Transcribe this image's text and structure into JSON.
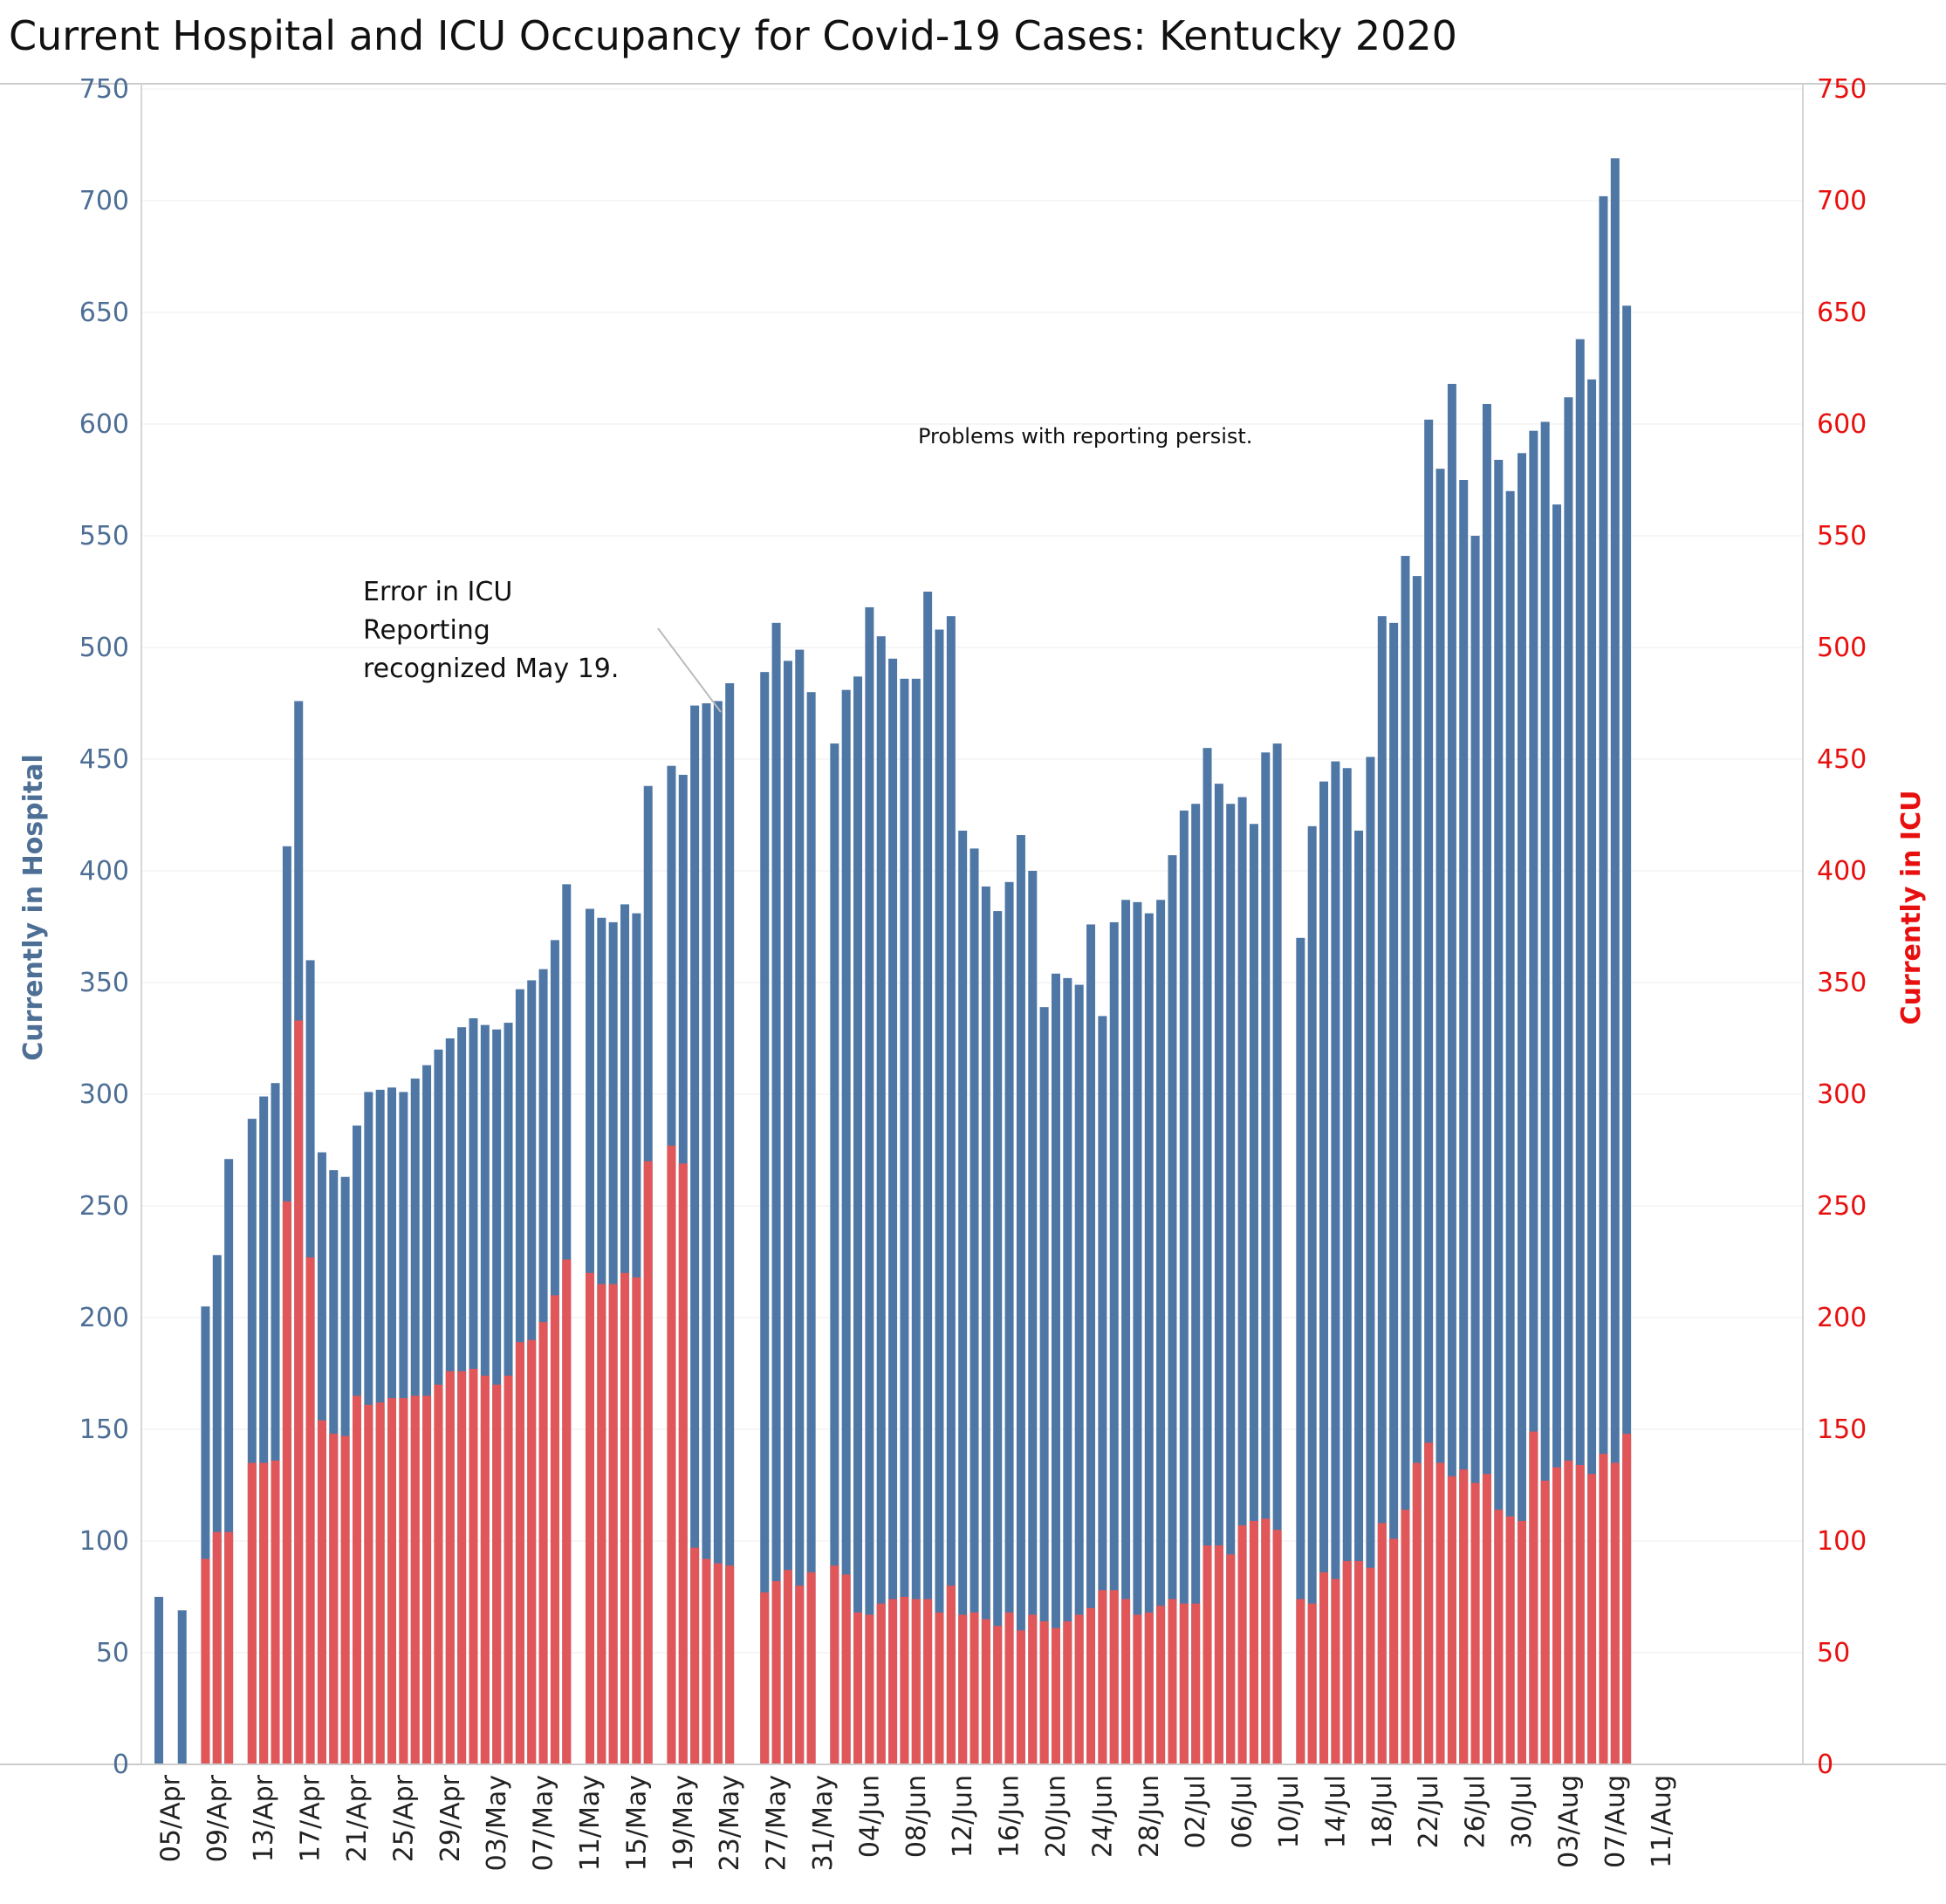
{
  "title": "Current Hospital and ICU Occupancy for Covid-19 Cases:  Kentucky 2020",
  "colors": {
    "hospital": "#4e77a5",
    "icu": "#e15759",
    "left_axis": "#4e6f95",
    "right_axis": "#e8100f",
    "grid": "#ececec"
  },
  "chart_data": {
    "type": "bar",
    "x_axis_label": "",
    "y_axis_left": {
      "title": "Currently in Hospital",
      "range": [
        0,
        750
      ],
      "ticks": [
        0,
        50,
        100,
        150,
        200,
        250,
        300,
        350,
        400,
        450,
        500,
        550,
        600,
        650,
        700,
        750
      ]
    },
    "y_axis_right": {
      "title": "Currently in ICU",
      "range": [
        0,
        750
      ],
      "ticks": [
        0,
        50,
        100,
        150,
        200,
        250,
        300,
        350,
        400,
        450,
        500,
        550,
        600,
        650,
        700,
        750
      ]
    },
    "x_date_range": [
      "2020-04-03",
      "2020-08-12"
    ],
    "x_ticks": [
      {
        "date": "2020-04-05",
        "label": "05/Apr"
      },
      {
        "date": "2020-04-09",
        "label": "09/Apr"
      },
      {
        "date": "2020-04-13",
        "label": "13/Apr"
      },
      {
        "date": "2020-04-17",
        "label": "17/Apr"
      },
      {
        "date": "2020-04-21",
        "label": "21/Apr"
      },
      {
        "date": "2020-04-25",
        "label": "25/Apr"
      },
      {
        "date": "2020-04-29",
        "label": "29/Apr"
      },
      {
        "date": "2020-05-03",
        "label": "03/May"
      },
      {
        "date": "2020-05-07",
        "label": "07/May"
      },
      {
        "date": "2020-05-11",
        "label": "11/May"
      },
      {
        "date": "2020-05-15",
        "label": "15/May"
      },
      {
        "date": "2020-05-19",
        "label": "19/May"
      },
      {
        "date": "2020-05-23",
        "label": "23/May"
      },
      {
        "date": "2020-05-27",
        "label": "27/May"
      },
      {
        "date": "2020-05-31",
        "label": "31/May"
      },
      {
        "date": "2020-06-04",
        "label": "04/Jun"
      },
      {
        "date": "2020-06-08",
        "label": "08/Jun"
      },
      {
        "date": "2020-06-12",
        "label": "12/Jun"
      },
      {
        "date": "2020-06-16",
        "label": "16/Jun"
      },
      {
        "date": "2020-06-20",
        "label": "20/Jun"
      },
      {
        "date": "2020-06-24",
        "label": "24/Jun"
      },
      {
        "date": "2020-06-28",
        "label": "28/Jun"
      },
      {
        "date": "2020-07-02",
        "label": "02/Jul"
      },
      {
        "date": "2020-07-06",
        "label": "06/Jul"
      },
      {
        "date": "2020-07-10",
        "label": "10/Jul"
      },
      {
        "date": "2020-07-14",
        "label": "14/Jul"
      },
      {
        "date": "2020-07-18",
        "label": "18/Jul"
      },
      {
        "date": "2020-07-22",
        "label": "22/Jul"
      },
      {
        "date": "2020-07-26",
        "label": "26/Jul"
      },
      {
        "date": "2020-07-30",
        "label": "30/Jul"
      },
      {
        "date": "2020-08-03",
        "label": "03/Aug"
      },
      {
        "date": "2020-08-07",
        "label": "07/Aug"
      },
      {
        "date": "2020-08-11",
        "label": "11/Aug"
      }
    ],
    "series": [
      {
        "name": "Currently in Hospital",
        "axis": "left",
        "data": [
          [
            "2020-04-04",
            75
          ],
          [
            "2020-04-06",
            69
          ],
          [
            "2020-04-08",
            205
          ],
          [
            "2020-04-09",
            228
          ],
          [
            "2020-04-10",
            271
          ],
          [
            "2020-04-12",
            289
          ],
          [
            "2020-04-13",
            299
          ],
          [
            "2020-04-14",
            305
          ],
          [
            "2020-04-15",
            411
          ],
          [
            "2020-04-16",
            476
          ],
          [
            "2020-04-17",
            360
          ],
          [
            "2020-04-18",
            274
          ],
          [
            "2020-04-19",
            266
          ],
          [
            "2020-04-20",
            263
          ],
          [
            "2020-04-21",
            286
          ],
          [
            "2020-04-22",
            301
          ],
          [
            "2020-04-23",
            302
          ],
          [
            "2020-04-24",
            303
          ],
          [
            "2020-04-25",
            301
          ],
          [
            "2020-04-26",
            307
          ],
          [
            "2020-04-27",
            313
          ],
          [
            "2020-04-28",
            320
          ],
          [
            "2020-04-29",
            325
          ],
          [
            "2020-04-30",
            330
          ],
          [
            "2020-05-01",
            334
          ],
          [
            "2020-05-02",
            331
          ],
          [
            "2020-05-03",
            329
          ],
          [
            "2020-05-04",
            332
          ],
          [
            "2020-05-05",
            347
          ],
          [
            "2020-05-06",
            351
          ],
          [
            "2020-05-07",
            356
          ],
          [
            "2020-05-08",
            369
          ],
          [
            "2020-05-09",
            394
          ],
          [
            "2020-05-11",
            383
          ],
          [
            "2020-05-12",
            379
          ],
          [
            "2020-05-13",
            377
          ],
          [
            "2020-05-14",
            385
          ],
          [
            "2020-05-15",
            381
          ],
          [
            "2020-05-16",
            438
          ],
          [
            "2020-05-18",
            447
          ],
          [
            "2020-05-19",
            443
          ],
          [
            "2020-05-20",
            474
          ],
          [
            "2020-05-21",
            475
          ],
          [
            "2020-05-22",
            476
          ],
          [
            "2020-05-23",
            484
          ],
          [
            "2020-05-26",
            489
          ],
          [
            "2020-05-27",
            511
          ],
          [
            "2020-05-28",
            494
          ],
          [
            "2020-05-29",
            499
          ],
          [
            "2020-05-30",
            480
          ],
          [
            "2020-06-01",
            457
          ],
          [
            "2020-06-02",
            481
          ],
          [
            "2020-06-03",
            487
          ],
          [
            "2020-06-04",
            518
          ],
          [
            "2020-06-05",
            505
          ],
          [
            "2020-06-06",
            495
          ],
          [
            "2020-06-07",
            486
          ],
          [
            "2020-06-08",
            486
          ],
          [
            "2020-06-09",
            525
          ],
          [
            "2020-06-10",
            508
          ],
          [
            "2020-06-11",
            514
          ],
          [
            "2020-06-12",
            418
          ],
          [
            "2020-06-13",
            410
          ],
          [
            "2020-06-14",
            393
          ],
          [
            "2020-06-15",
            382
          ],
          [
            "2020-06-16",
            395
          ],
          [
            "2020-06-17",
            416
          ],
          [
            "2020-06-18",
            400
          ],
          [
            "2020-06-19",
            339
          ],
          [
            "2020-06-20",
            354
          ],
          [
            "2020-06-21",
            352
          ],
          [
            "2020-06-22",
            349
          ],
          [
            "2020-06-23",
            376
          ],
          [
            "2020-06-24",
            335
          ],
          [
            "2020-06-25",
            377
          ],
          [
            "2020-06-26",
            387
          ],
          [
            "2020-06-27",
            386
          ],
          [
            "2020-06-28",
            381
          ],
          [
            "2020-06-29",
            387
          ],
          [
            "2020-06-30",
            407
          ],
          [
            "2020-07-01",
            427
          ],
          [
            "2020-07-02",
            430
          ],
          [
            "2020-07-03",
            455
          ],
          [
            "2020-07-04",
            439
          ],
          [
            "2020-07-05",
            430
          ],
          [
            "2020-07-06",
            433
          ],
          [
            "2020-07-07",
            421
          ],
          [
            "2020-07-08",
            453
          ],
          [
            "2020-07-09",
            457
          ],
          [
            "2020-07-11",
            370
          ],
          [
            "2020-07-12",
            420
          ],
          [
            "2020-07-13",
            440
          ],
          [
            "2020-07-14",
            449
          ],
          [
            "2020-07-15",
            446
          ],
          [
            "2020-07-16",
            418
          ],
          [
            "2020-07-17",
            451
          ],
          [
            "2020-07-18",
            514
          ],
          [
            "2020-07-19",
            511
          ],
          [
            "2020-07-20",
            541
          ],
          [
            "2020-07-21",
            532
          ],
          [
            "2020-07-22",
            602
          ],
          [
            "2020-07-23",
            580
          ],
          [
            "2020-07-24",
            618
          ],
          [
            "2020-07-25",
            575
          ],
          [
            "2020-07-26",
            550
          ],
          [
            "2020-07-27",
            609
          ],
          [
            "2020-07-28",
            584
          ],
          [
            "2020-07-29",
            570
          ],
          [
            "2020-07-30",
            587
          ],
          [
            "2020-07-31",
            597
          ],
          [
            "2020-08-01",
            601
          ],
          [
            "2020-08-02",
            564
          ],
          [
            "2020-08-03",
            612
          ],
          [
            "2020-08-04",
            638
          ],
          [
            "2020-08-05",
            620
          ],
          [
            "2020-08-06",
            702
          ],
          [
            "2020-08-07",
            719
          ],
          [
            "2020-08-08",
            653
          ]
        ]
      },
      {
        "name": "Currently in ICU",
        "axis": "right",
        "data": [
          [
            "2020-04-08",
            92
          ],
          [
            "2020-04-09",
            104
          ],
          [
            "2020-04-10",
            104
          ],
          [
            "2020-04-12",
            135
          ],
          [
            "2020-04-13",
            135
          ],
          [
            "2020-04-14",
            136
          ],
          [
            "2020-04-15",
            252
          ],
          [
            "2020-04-16",
            333
          ],
          [
            "2020-04-17",
            227
          ],
          [
            "2020-04-18",
            154
          ],
          [
            "2020-04-19",
            148
          ],
          [
            "2020-04-20",
            147
          ],
          [
            "2020-04-21",
            165
          ],
          [
            "2020-04-22",
            161
          ],
          [
            "2020-04-23",
            162
          ],
          [
            "2020-04-24",
            164
          ],
          [
            "2020-04-25",
            164
          ],
          [
            "2020-04-26",
            165
          ],
          [
            "2020-04-27",
            165
          ],
          [
            "2020-04-28",
            170
          ],
          [
            "2020-04-29",
            176
          ],
          [
            "2020-04-30",
            176
          ],
          [
            "2020-05-01",
            177
          ],
          [
            "2020-05-02",
            174
          ],
          [
            "2020-05-03",
            170
          ],
          [
            "2020-05-04",
            174
          ],
          [
            "2020-05-05",
            189
          ],
          [
            "2020-05-06",
            190
          ],
          [
            "2020-05-07",
            198
          ],
          [
            "2020-05-08",
            210
          ],
          [
            "2020-05-09",
            226
          ],
          [
            "2020-05-11",
            220
          ],
          [
            "2020-05-12",
            215
          ],
          [
            "2020-05-13",
            215
          ],
          [
            "2020-05-14",
            220
          ],
          [
            "2020-05-15",
            218
          ],
          [
            "2020-05-16",
            270
          ],
          [
            "2020-05-18",
            277
          ],
          [
            "2020-05-19",
            269
          ],
          [
            "2020-05-20",
            97
          ],
          [
            "2020-05-21",
            92
          ],
          [
            "2020-05-22",
            90
          ],
          [
            "2020-05-23",
            89
          ],
          [
            "2020-05-26",
            77
          ],
          [
            "2020-05-27",
            82
          ],
          [
            "2020-05-28",
            87
          ],
          [
            "2020-05-29",
            80
          ],
          [
            "2020-05-30",
            86
          ],
          [
            "2020-06-01",
            89
          ],
          [
            "2020-06-02",
            85
          ],
          [
            "2020-06-03",
            68
          ],
          [
            "2020-06-04",
            67
          ],
          [
            "2020-06-05",
            72
          ],
          [
            "2020-06-06",
            74
          ],
          [
            "2020-06-07",
            75
          ],
          [
            "2020-06-08",
            74
          ],
          [
            "2020-06-09",
            74
          ],
          [
            "2020-06-10",
            68
          ],
          [
            "2020-06-11",
            80
          ],
          [
            "2020-06-12",
            67
          ],
          [
            "2020-06-13",
            68
          ],
          [
            "2020-06-14",
            65
          ],
          [
            "2020-06-15",
            62
          ],
          [
            "2020-06-16",
            68
          ],
          [
            "2020-06-17",
            60
          ],
          [
            "2020-06-18",
            67
          ],
          [
            "2020-06-19",
            64
          ],
          [
            "2020-06-20",
            61
          ],
          [
            "2020-06-21",
            64
          ],
          [
            "2020-06-22",
            67
          ],
          [
            "2020-06-23",
            70
          ],
          [
            "2020-06-24",
            78
          ],
          [
            "2020-06-25",
            78
          ],
          [
            "2020-06-26",
            74
          ],
          [
            "2020-06-27",
            67
          ],
          [
            "2020-06-28",
            68
          ],
          [
            "2020-06-29",
            71
          ],
          [
            "2020-06-30",
            74
          ],
          [
            "2020-07-01",
            72
          ],
          [
            "2020-07-02",
            72
          ],
          [
            "2020-07-03",
            98
          ],
          [
            "2020-07-04",
            98
          ],
          [
            "2020-07-05",
            94
          ],
          [
            "2020-07-06",
            107
          ],
          [
            "2020-07-07",
            109
          ],
          [
            "2020-07-08",
            110
          ],
          [
            "2020-07-09",
            105
          ],
          [
            "2020-07-11",
            74
          ],
          [
            "2020-07-12",
            72
          ],
          [
            "2020-07-13",
            86
          ],
          [
            "2020-07-14",
            83
          ],
          [
            "2020-07-15",
            91
          ],
          [
            "2020-07-16",
            91
          ],
          [
            "2020-07-17",
            88
          ],
          [
            "2020-07-18",
            108
          ],
          [
            "2020-07-19",
            101
          ],
          [
            "2020-07-20",
            114
          ],
          [
            "2020-07-21",
            135
          ],
          [
            "2020-07-22",
            144
          ],
          [
            "2020-07-23",
            135
          ],
          [
            "2020-07-24",
            129
          ],
          [
            "2020-07-25",
            132
          ],
          [
            "2020-07-26",
            126
          ],
          [
            "2020-07-27",
            130
          ],
          [
            "2020-07-28",
            114
          ],
          [
            "2020-07-29",
            111
          ],
          [
            "2020-07-30",
            109
          ],
          [
            "2020-07-31",
            149
          ],
          [
            "2020-08-01",
            127
          ],
          [
            "2020-08-02",
            133
          ],
          [
            "2020-08-03",
            136
          ],
          [
            "2020-08-04",
            134
          ],
          [
            "2020-08-05",
            130
          ],
          [
            "2020-08-06",
            139
          ],
          [
            "2020-08-07",
            135
          ],
          [
            "2020-08-08",
            148
          ]
        ]
      }
    ],
    "annotations": [
      {
        "lines": [
          "Error in ICU",
          "Reporting",
          "recognized May 19."
        ],
        "target_date": "2020-05-20",
        "target_value": 470
      },
      {
        "lines": [
          "Problems with reporting persist."
        ]
      }
    ],
    "grid": true,
    "legend": "none"
  }
}
